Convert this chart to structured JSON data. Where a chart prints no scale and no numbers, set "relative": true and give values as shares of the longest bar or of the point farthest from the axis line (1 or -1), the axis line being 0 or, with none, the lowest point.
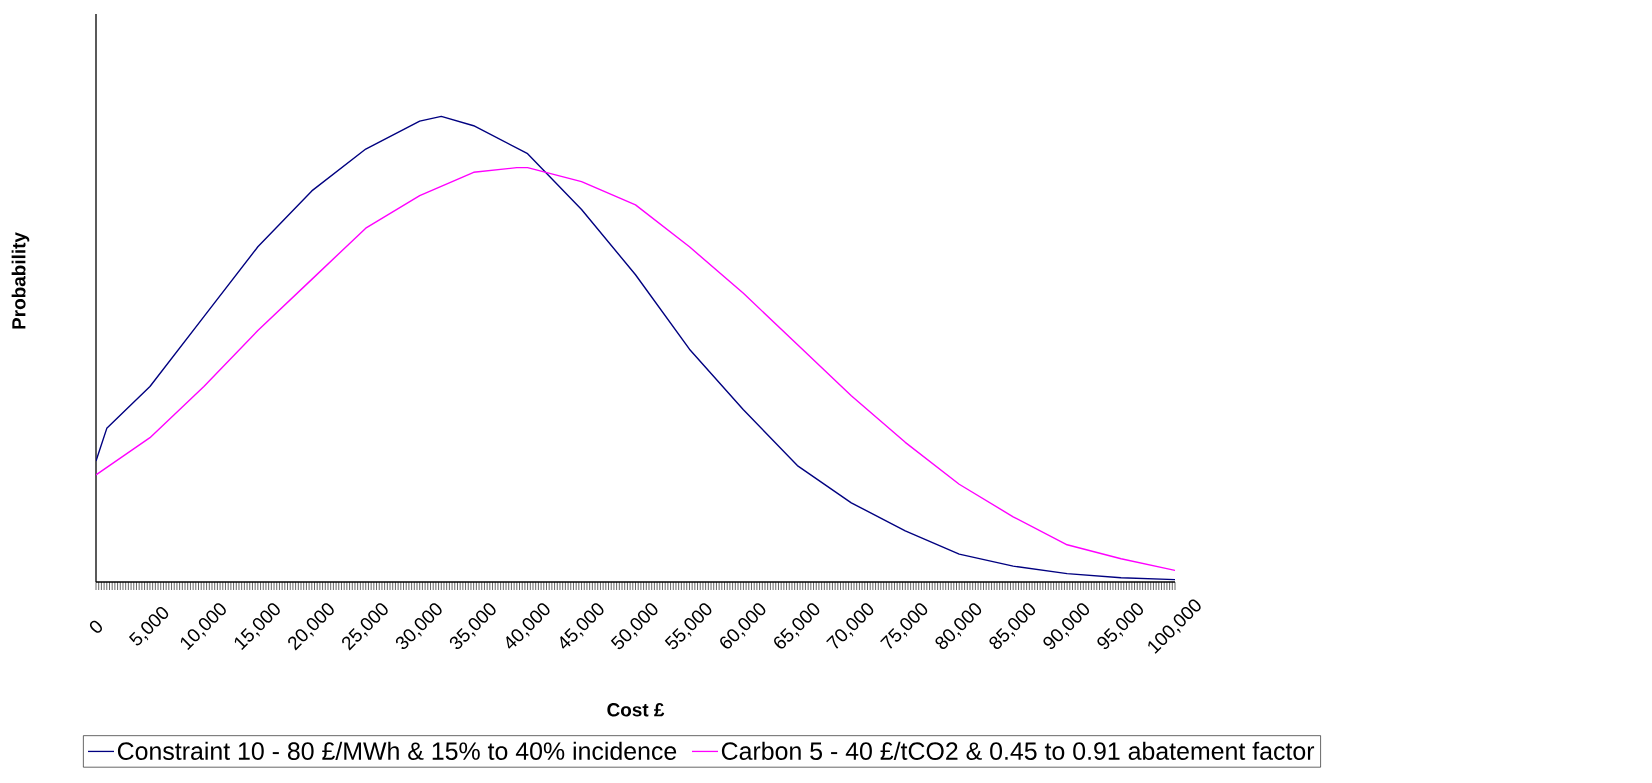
{
  "chart_data": {
    "type": "line",
    "xlabel": "Cost £",
    "ylabel": "Probability",
    "relative": true,
    "xlim": [
      0,
      100000
    ],
    "xticks": [
      {
        "value": 0,
        "label": "0"
      },
      {
        "value": 5000,
        "label": "5,000"
      },
      {
        "value": 10000,
        "label": "10,000"
      },
      {
        "value": 15000,
        "label": "15,000"
      },
      {
        "value": 20000,
        "label": "20,000"
      },
      {
        "value": 25000,
        "label": "25,000"
      },
      {
        "value": 30000,
        "label": "30,000"
      },
      {
        "value": 35000,
        "label": "35,000"
      },
      {
        "value": 40000,
        "label": "40,000"
      },
      {
        "value": 45000,
        "label": "45,000"
      },
      {
        "value": 50000,
        "label": "50,000"
      },
      {
        "value": 55000,
        "label": "55,000"
      },
      {
        "value": 60000,
        "label": "60,000"
      },
      {
        "value": 65000,
        "label": "65,000"
      },
      {
        "value": 70000,
        "label": "70,000"
      },
      {
        "value": 75000,
        "label": "75,000"
      },
      {
        "value": 80000,
        "label": "80,000"
      },
      {
        "value": 85000,
        "label": "85,000"
      },
      {
        "value": 90000,
        "label": "90,000"
      },
      {
        "value": 95000,
        "label": "95,000"
      },
      {
        "value": 100000,
        "label": "100,000"
      }
    ],
    "legend": "bottom",
    "marker": "none",
    "line_style": "solid",
    "series": [
      {
        "name": "Constraint 10 - 80 £/MWh & 15% to 40% incidence",
        "color": "#000080",
        "x": [
          0,
          1000,
          5000,
          10000,
          15000,
          20000,
          25000,
          30000,
          32000,
          35000,
          40000,
          45000,
          50000,
          55000,
          60000,
          65000,
          70000,
          75000,
          80000,
          85000,
          90000,
          95000,
          100000
        ],
        "values": [
          0.26,
          0.33,
          0.42,
          0.57,
          0.72,
          0.84,
          0.93,
          0.99,
          1.0,
          0.98,
          0.92,
          0.8,
          0.66,
          0.5,
          0.37,
          0.25,
          0.17,
          0.11,
          0.06,
          0.034,
          0.018,
          0.009,
          0.005
        ]
      },
      {
        "name": "Carbon 5 - 40 £/tCO2 & 0.45 to 0.91 abatement factor",
        "color": "#ff00ff",
        "x": [
          0,
          5000,
          10000,
          15000,
          20000,
          25000,
          30000,
          35000,
          39000,
          40000,
          45000,
          50000,
          55000,
          60000,
          65000,
          70000,
          75000,
          80000,
          85000,
          90000,
          95000,
          100000
        ],
        "values": [
          0.23,
          0.31,
          0.42,
          0.54,
          0.65,
          0.76,
          0.83,
          0.88,
          0.89,
          0.89,
          0.86,
          0.81,
          0.72,
          0.62,
          0.51,
          0.4,
          0.3,
          0.21,
          0.14,
          0.08,
          0.05,
          0.025
        ]
      }
    ]
  }
}
